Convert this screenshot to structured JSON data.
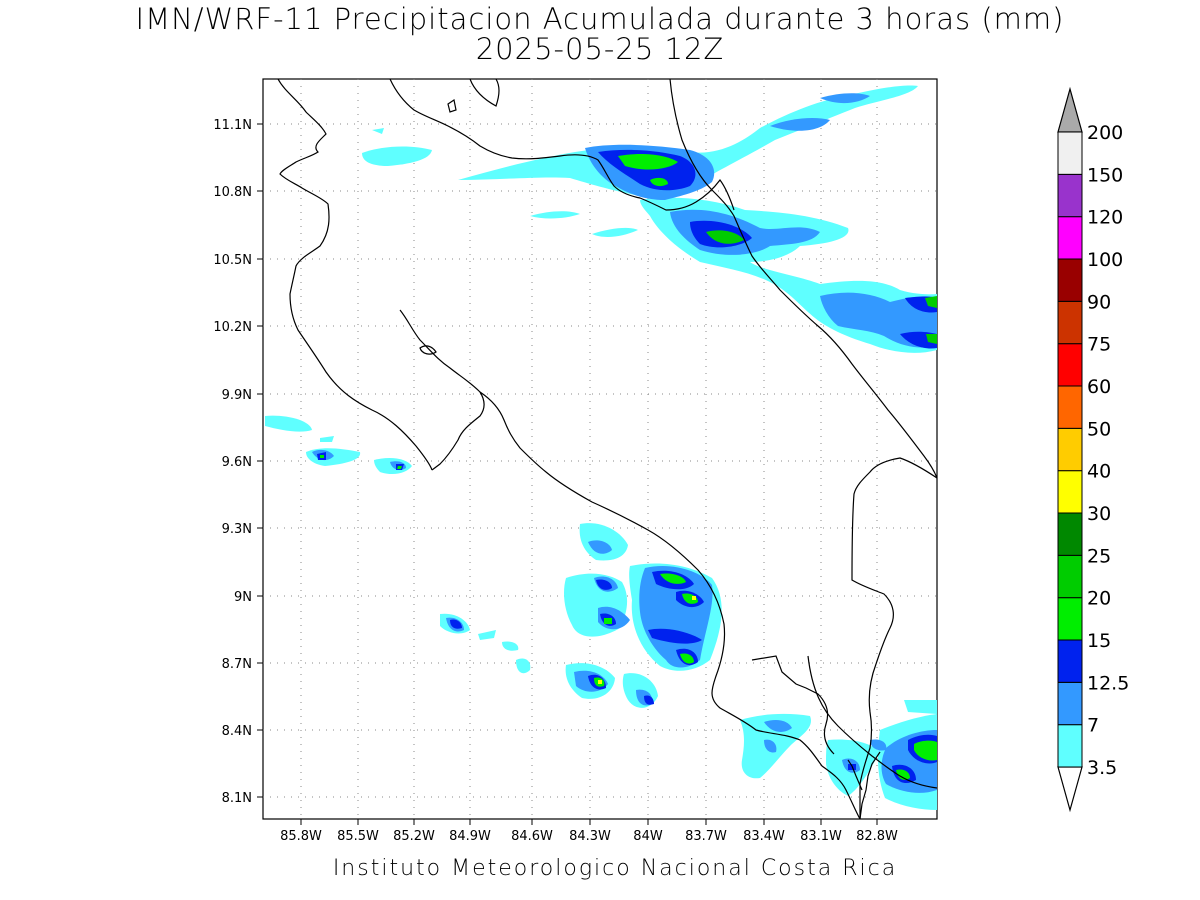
{
  "title_line1": "IMN/WRF-11 Precipitacion Acumulada durante 3 horas (mm)",
  "title_line2": "2025-05-25 12Z",
  "footer": "Instituto Meteorologico Nacional Costa Rica",
  "map": {
    "lon_range": [
      -85.98,
      -82.62
    ],
    "lat_range": [
      8.0,
      11.3
    ],
    "lon_ticks": [
      "85.8W",
      "85.5W",
      "85.2W",
      "84.9W",
      "84.6W",
      "84.3W",
      "84W",
      "83.7W",
      "83.4W",
      "83.1W",
      "82.8W"
    ],
    "lat_ticks": [
      "11.1N",
      "10.8N",
      "10.5N",
      "10.2N",
      "9.9N",
      "9.6N",
      "9.3N",
      "9N",
      "8.7N",
      "8.4N",
      "8.1N"
    ],
    "grid": "dotted"
  },
  "colorbar": {
    "levels": [
      "3.5",
      "7",
      "12.5",
      "15",
      "20",
      "25",
      "30",
      "40",
      "50",
      "60",
      "75",
      "90",
      "100",
      "120",
      "150",
      "200"
    ],
    "colors": [
      "#5fffff",
      "#3399ff",
      "#0022ee",
      "#00ee00",
      "#00cc00",
      "#008800",
      "#ffff00",
      "#ffcc00",
      "#ff6600",
      "#ff0000",
      "#cc3300",
      "#990000",
      "#ff00ff",
      "#9933cc",
      "#f0f0f0",
      "#aaaaaa"
    ]
  }
}
